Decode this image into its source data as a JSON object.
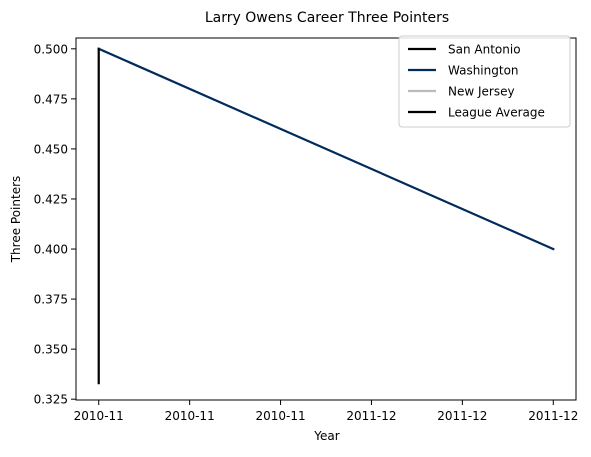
{
  "chart_data": {
    "type": "line",
    "title": "Larry Owens Career Three Pointers",
    "xlabel": "Year",
    "ylabel": "Three Pointers",
    "x_ticks": [
      {
        "value": 0.0,
        "label": "2010-11"
      },
      {
        "value": 0.2,
        "label": "2010-11"
      },
      {
        "value": 0.4,
        "label": "2010-11"
      },
      {
        "value": 0.6,
        "label": "2011-12"
      },
      {
        "value": 0.8,
        "label": "2011-12"
      },
      {
        "value": 1.0,
        "label": "2011-12"
      }
    ],
    "xlim": [
      -0.05,
      1.05
    ],
    "ylim": [
      0.3246,
      0.5054
    ],
    "y_ticks": [
      0.325,
      0.35,
      0.375,
      0.4,
      0.425,
      0.45,
      0.475,
      0.5
    ],
    "grid": false,
    "legend_position": "top-right",
    "series": [
      {
        "name": "San Antonio",
        "color": "#000000",
        "points": [
          [
            0.0,
            0.5
          ],
          [
            0.0,
            0.5
          ]
        ]
      },
      {
        "name": "Washington",
        "color": "#002b5c",
        "points": [
          [
            0.0,
            0.5
          ],
          [
            1.0,
            0.4
          ]
        ]
      },
      {
        "name": "New Jersey",
        "color": "#bbbbbb",
        "points": [
          [
            0.0,
            0.5
          ],
          [
            0.0,
            0.5
          ]
        ]
      },
      {
        "name": "League Average",
        "color": "#000000",
        "points": [
          [
            0.0,
            0.333
          ],
          [
            0.0,
            0.5
          ]
        ]
      }
    ]
  }
}
